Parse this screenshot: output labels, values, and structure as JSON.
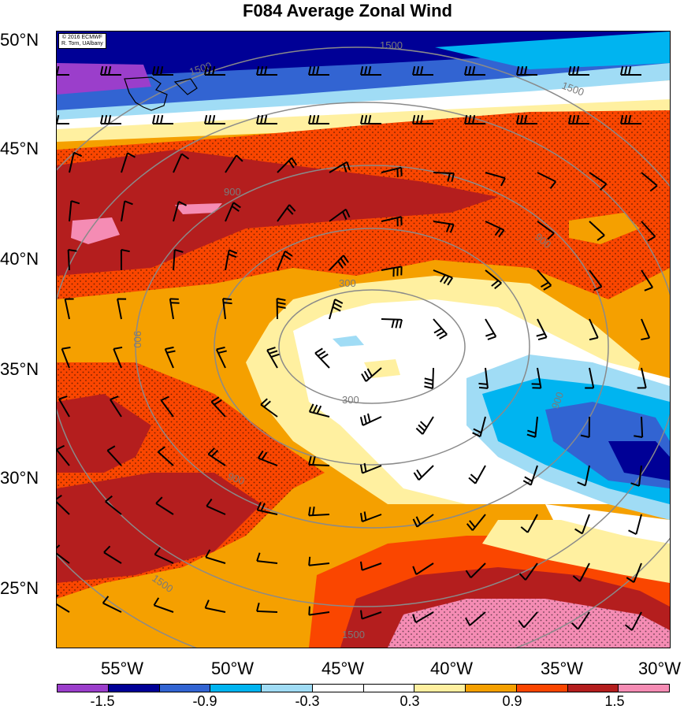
{
  "title": "F084 Average Zonal Wind",
  "credit": {
    "line1": "© 2016 ECMWF",
    "line2": "R. Torn, UAlbany"
  },
  "lat_labels": [
    "50°N",
    "45°N",
    "40°N",
    "35°N",
    "30°N",
    "25°N"
  ],
  "lon_labels": [
    "55°W",
    "50°W",
    "45°W",
    "40°W",
    "35°W",
    "30°W"
  ],
  "contour_labels": [
    "1500",
    "1500",
    "1500",
    "900",
    "900",
    "900",
    "900",
    "900",
    "300",
    "300",
    "1500",
    "1500"
  ],
  "colorbar": {
    "colors": [
      "#9b3ecb",
      "#000096",
      "#3264d2",
      "#00b4f0",
      "#a0dcf5",
      "#ffffff",
      "#ffffff",
      "#fff0a0",
      "#f5a000",
      "#fa4600",
      "#b41e1e",
      "#f58cb4"
    ],
    "labels": [
      "-1.5",
      "-0.9",
      "-0.3",
      "0.3",
      "0.9",
      "1.5"
    ]
  }
}
